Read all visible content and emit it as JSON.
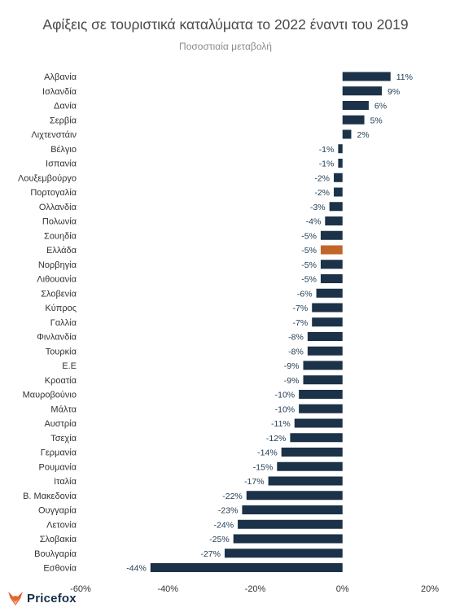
{
  "title": "Αφίξεις σε τουριστικά καταλύματα το 2022 έναντι του 2019",
  "subtitle": "Ποσοστιαία μεταβολή",
  "brand": "Pricefox",
  "colors": {
    "bar": "#1b3248",
    "highlight": "#c0662a",
    "label": "#1e3a52"
  },
  "chart_data": {
    "type": "bar",
    "orientation": "horizontal",
    "title": "Αφίξεις σε τουριστικά καταλύματα το 2022 έναντι του 2019",
    "subtitle": "Ποσοστιαία μεταβολή",
    "xlabel": "",
    "ylabel": "",
    "xlim": [
      -60,
      20
    ],
    "xticks": [
      -60,
      -40,
      -20,
      0,
      20
    ],
    "tick_labels": [
      "-60%",
      "-40%",
      "-20%",
      "0%",
      "20%"
    ],
    "grid": false,
    "highlight": "Ελλάδα",
    "categories": [
      "Αλβανία",
      "Ισλανδία",
      "Δανία",
      "Σερβία",
      "Λιχτενστάιν",
      "Βέλγιο",
      "Ισπανία",
      "Λουξεμβούργο",
      "Πορτογαλία",
      "Ολλανδία",
      "Πολωνία",
      "Σουηδία",
      "Ελλάδα",
      "Νορβηγία",
      "Λιθουανία",
      "Σλοβενία",
      "Κύπρος",
      "Γαλλία",
      "Φινλανδία",
      "Τουρκία",
      "Ε.Ε",
      "Κροατία",
      "Μαυροβούνιο",
      "Μάλτα",
      "Αυστρία",
      "Τσεχία",
      "Γερμανία",
      "Ρουμανία",
      "Ιταλία",
      "Β. Μακεδονία",
      "Ουγγαρία",
      "Λετονία",
      "Σλοβακία",
      "Βουλγαρία",
      "Εσθονία"
    ],
    "values": [
      11,
      9,
      6,
      5,
      2,
      -1,
      -1,
      -2,
      -2,
      -3,
      -4,
      -5,
      -5,
      -5,
      -5,
      -6,
      -7,
      -7,
      -8,
      -8,
      -9,
      -9,
      -10,
      -10,
      -11,
      -12,
      -14,
      -15,
      -17,
      -22,
      -23,
      -24,
      -25,
      -27,
      -44
    ],
    "value_labels": [
      "11%",
      "9%",
      "6%",
      "5%",
      "2%",
      "-1%",
      "-1%",
      "-2%",
      "-2%",
      "-3%",
      "-4%",
      "-5%",
      "-5%",
      "-5%",
      "-5%",
      "-6%",
      "-7%",
      "-7%",
      "-8%",
      "-8%",
      "-9%",
      "-9%",
      "-10%",
      "-10%",
      "-11%",
      "-12%",
      "-14%",
      "-15%",
      "-17%",
      "-22%",
      "-23%",
      "-24%",
      "-25%",
      "-27%",
      "-44%"
    ]
  }
}
